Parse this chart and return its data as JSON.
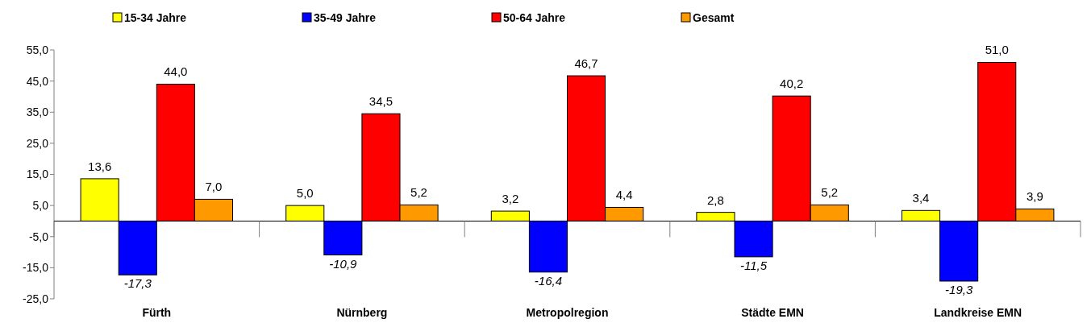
{
  "chart_data": {
    "type": "bar",
    "categories": [
      "Fürth",
      "Nürnberg",
      "Metropolregion",
      "Städte EMN",
      "Landkreise EMN"
    ],
    "series": [
      {
        "name": "15-34 Jahre",
        "color": "#ffff00",
        "values": [
          13.6,
          5.0,
          3.2,
          2.8,
          3.4
        ],
        "value_labels": [
          "13,6",
          "5,0",
          "3,2",
          "2,8",
          "3,4"
        ]
      },
      {
        "name": "35-49 Jahre",
        "color": "#0000ff",
        "values": [
          -17.3,
          -10.9,
          -16.4,
          -11.5,
          -19.3
        ],
        "value_labels": [
          "-17,3",
          "-10,9",
          "-16,4",
          "-11,5",
          "-19,3"
        ]
      },
      {
        "name": "50-64 Jahre",
        "color": "#ff0000",
        "values": [
          44.0,
          34.5,
          46.7,
          40.2,
          51.0
        ],
        "value_labels": [
          "44,0",
          "34,5",
          "46,7",
          "40,2",
          "51,0"
        ]
      },
      {
        "name": "Gesamt",
        "color": "#ff9900",
        "values": [
          7.0,
          5.2,
          4.4,
          5.2,
          3.9
        ],
        "value_labels": [
          "7,0",
          "5,2",
          "4,4",
          "5,2",
          "3,9"
        ]
      }
    ],
    "ylim": [
      -25,
      55
    ],
    "yticks": [
      {
        "value": -25,
        "label": "-25,0"
      },
      {
        "value": -15,
        "label": "-15,0"
      },
      {
        "value": -5,
        "label": "-5,0"
      },
      {
        "value": 5,
        "label": "5,0"
      },
      {
        "value": 15,
        "label": "15,0"
      },
      {
        "value": 25,
        "label": "25,0"
      },
      {
        "value": 35,
        "label": "35,0"
      },
      {
        "value": 45,
        "label": "45,0"
      },
      {
        "value": 55,
        "label": "55,0"
      }
    ],
    "grid": false,
    "legend": "top"
  }
}
